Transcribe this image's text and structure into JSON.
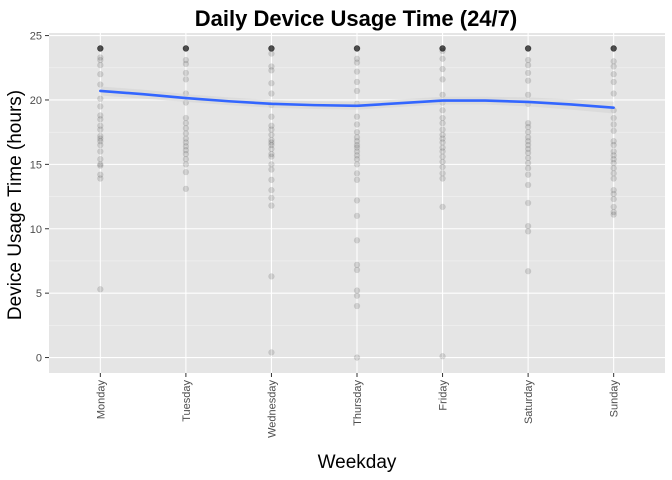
{
  "chart_data": {
    "type": "scatter",
    "title": "Daily Device Usage Time (24/7)",
    "xlabel": "Weekday",
    "ylabel": "Device Usage Time (hours)",
    "categories": [
      "Monday",
      "Tuesday",
      "Wednesday",
      "Thursday",
      "Friday",
      "Saturday",
      "Sunday"
    ],
    "ylim": [
      -1.2,
      25.2
    ],
    "yticks": [
      0,
      5,
      10,
      15,
      20,
      25
    ],
    "grid": true,
    "legend": "none",
    "colors": {
      "panel": "#e5e5e5",
      "grid_major": "#ffffff",
      "grid_minor": "#f2f2f2",
      "points": "#000000",
      "smooth_line": "#3366ff",
      "ribbon": "#d3d3d3"
    },
    "points": [
      {
        "category": "Monday",
        "values": [
          24,
          24,
          24,
          24,
          24,
          24,
          24,
          24,
          23.3,
          23.1,
          22.7,
          22.0,
          21.2,
          20.1,
          19.5,
          18.8,
          18.5,
          18.0,
          17.7,
          17.2,
          17.0,
          16.8,
          16.5,
          16.0,
          15.4,
          15.0,
          14.9,
          14.2,
          13.9,
          5.3
        ]
      },
      {
        "category": "Tuesday",
        "values": [
          24,
          24,
          24,
          24,
          24,
          24,
          24,
          24,
          23.1,
          22.8,
          22.1,
          21.6,
          20.5,
          19.8,
          18.6,
          18.2,
          17.8,
          17.4,
          17.0,
          16.7,
          16.4,
          16.1,
          15.8,
          15.4,
          15.0,
          14.4,
          13.1
        ]
      },
      {
        "category": "Wednesday",
        "values": [
          24,
          24,
          24,
          24,
          24,
          24,
          24,
          24,
          23.6,
          22.6,
          22.3,
          21.3,
          20.5,
          19.6,
          18.7,
          18.0,
          17.7,
          17.3,
          16.9,
          16.7,
          16.5,
          16.2,
          15.8,
          15.6,
          15.0,
          14.6,
          13.8,
          13.0,
          12.4,
          11.8,
          6.3,
          0.4
        ]
      },
      {
        "category": "Thursday",
        "values": [
          24,
          24,
          24,
          24,
          24,
          24,
          24,
          24,
          23.2,
          22.9,
          22.2,
          21.4,
          20.7,
          19.7,
          18.7,
          18.1,
          17.5,
          17.1,
          16.8,
          16.5,
          16.3,
          16.0,
          15.7,
          15.4,
          15.0,
          14.3,
          13.8,
          12.2,
          11.0,
          9.1,
          7.2,
          6.8,
          5.2,
          4.8,
          4.0,
          0.0
        ]
      },
      {
        "category": "Friday",
        "values": [
          24,
          24,
          24,
          24,
          24,
          24,
          24,
          24,
          23.8,
          23.2,
          22.4,
          21.6,
          20.4,
          19.8,
          19.2,
          18.6,
          18.2,
          17.7,
          17.3,
          17.0,
          16.7,
          16.3,
          16.0,
          15.6,
          15.2,
          14.8,
          14.3,
          13.9,
          11.7,
          0.1
        ]
      },
      {
        "category": "Saturday",
        "values": [
          24,
          24,
          24,
          24,
          24,
          24,
          24,
          24,
          23.1,
          22.7,
          22.1,
          21.5,
          20.4,
          19.7,
          18.2,
          17.9,
          17.5,
          17.1,
          16.8,
          16.5,
          16.2,
          15.9,
          15.5,
          15.1,
          14.7,
          14.2,
          13.4,
          12.0,
          10.2,
          9.8,
          6.7
        ]
      },
      {
        "category": "Sunday",
        "values": [
          24,
          24,
          24,
          24,
          24,
          24,
          24,
          24,
          23.0,
          22.6,
          22.0,
          21.4,
          20.5,
          19.2,
          18.6,
          18.1,
          17.6,
          16.8,
          16.5,
          16.0,
          15.7,
          15.4,
          15.1,
          14.7,
          14.3,
          13.9,
          13.0,
          12.7,
          12.3,
          11.7,
          11.3,
          11.1
        ]
      }
    ],
    "smooth_line": {
      "x": [
        1,
        1.5,
        2,
        2.5,
        3,
        3.5,
        4,
        4.5,
        5,
        5.5,
        6,
        6.5,
        7
      ],
      "y": [
        20.7,
        20.45,
        20.15,
        19.9,
        19.7,
        19.6,
        19.55,
        19.75,
        19.95,
        19.95,
        19.85,
        19.65,
        19.4
      ],
      "band": [
        0.35,
        0.35,
        0.3,
        0.3,
        0.3,
        0.3,
        0.3,
        0.3,
        0.3,
        0.3,
        0.35,
        0.4,
        0.45
      ]
    }
  }
}
